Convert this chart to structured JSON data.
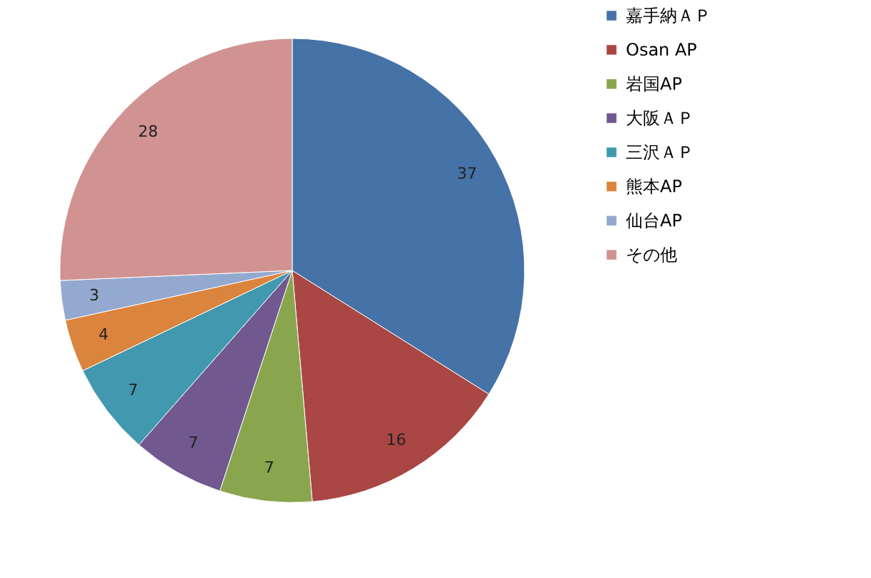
{
  "chart_data": {
    "type": "pie",
    "categories": [
      "嘉手納ＡＰ",
      "Osan AP",
      "岩国AP",
      "大阪ＡＰ",
      "三沢ＡＰ",
      "熊本AP",
      "仙台AP",
      "その他"
    ],
    "values": [
      37,
      16,
      7,
      7,
      7,
      4,
      3,
      28
    ],
    "colors": [
      "#4572a7",
      "#aa4643",
      "#89a54e",
      "#71588f",
      "#4198af",
      "#db843d",
      "#93a9cf",
      "#d19392"
    ],
    "data_labels": true,
    "legend": "right"
  }
}
